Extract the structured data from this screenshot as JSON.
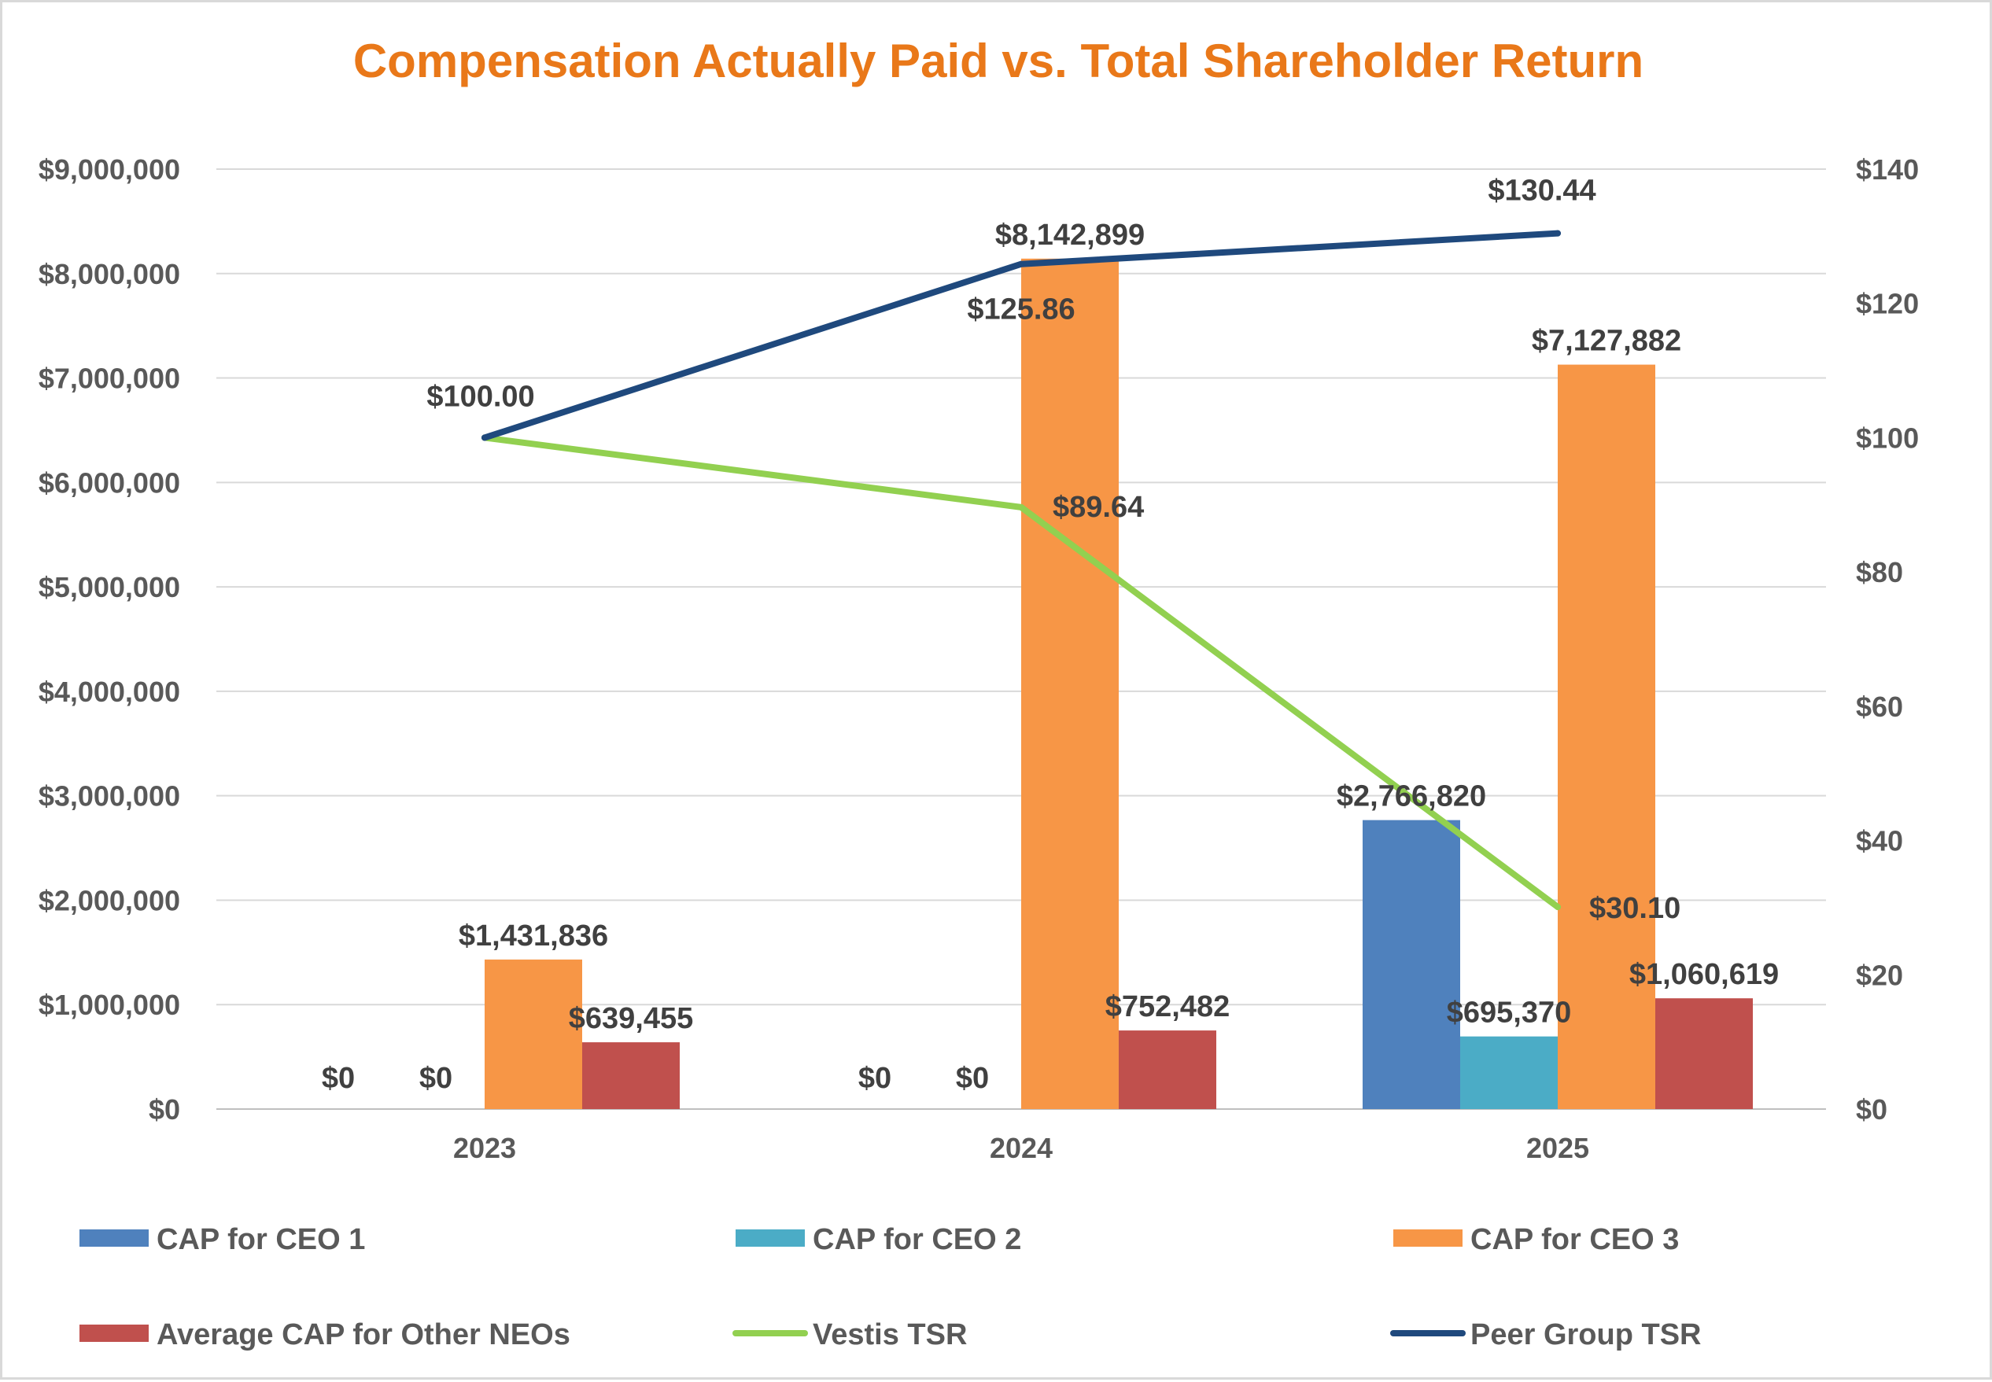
{
  "chart_data": {
    "type": "bar",
    "title": "Compensation Actually Paid vs. Total Shareholder Return",
    "categories": [
      "2023",
      "2024",
      "2025"
    ],
    "y_left": {
      "ticks": [
        "$0",
        "$1,000,000",
        "$2,000,000",
        "$3,000,000",
        "$4,000,000",
        "$5,000,000",
        "$6,000,000",
        "$7,000,000",
        "$8,000,000",
        "$9,000,000"
      ],
      "ylim": [
        0,
        9000000
      ]
    },
    "y_right": {
      "ticks": [
        "$0",
        "$20",
        "$40",
        "$60",
        "$80",
        "$100",
        "$120",
        "$140"
      ],
      "ylim": [
        0,
        140
      ]
    },
    "grid": true,
    "legend_position": "bottom",
    "bar_series": [
      {
        "name": "CAP for CEO 1",
        "color": "#4f81bd",
        "values": [
          0,
          0,
          2766820
        ],
        "labels": [
          "$0",
          "$0",
          "$2,766,820"
        ]
      },
      {
        "name": "CAP for CEO 2",
        "color": "#4bacc6",
        "values": [
          0,
          0,
          695370
        ],
        "labels": [
          "$0",
          "$0",
          "$695,370"
        ]
      },
      {
        "name": "CAP for CEO 3",
        "color": "#f79646",
        "values": [
          1431836,
          8142899,
          7127882
        ],
        "labels": [
          "$1,431,836",
          "$8,142,899",
          "$7,127,882"
        ]
      },
      {
        "name": "Average CAP for Other NEOs",
        "color": "#c0504d",
        "values": [
          639455,
          752482,
          1060619
        ],
        "labels": [
          "$639,455",
          "$752,482",
          "$1,060,619"
        ]
      }
    ],
    "line_series": [
      {
        "name": "Vestis TSR",
        "color": "#92d050",
        "axis": "right",
        "values": [
          100.0,
          89.64,
          30.1
        ],
        "labels": [
          "",
          "$89.64",
          "$30.10"
        ]
      },
      {
        "name": "Peer Group TSR",
        "color": "#1f497d",
        "axis": "right",
        "values": [
          100.0,
          125.86,
          130.44
        ],
        "labels": [
          "$100.00",
          "$125.86",
          "$130.44"
        ]
      }
    ]
  }
}
